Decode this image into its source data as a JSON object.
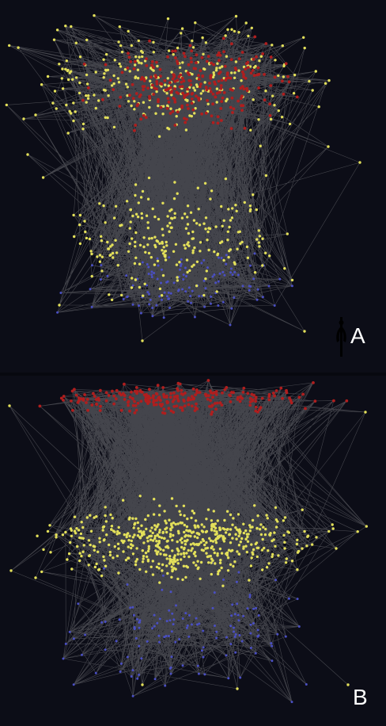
{
  "panels": [
    {
      "label": "A",
      "structure": "hourglass",
      "node_counts": {
        "red": 260,
        "yellow": 520,
        "blue": 120
      },
      "edge_count": 2400
    },
    {
      "label": "B",
      "structure": "funnel",
      "node_counts": {
        "red": 240,
        "yellow": 560,
        "blue": 140
      },
      "edge_count": 2600
    }
  ],
  "colors": {
    "background": "#0c0d17",
    "edge": "#d8d8d8",
    "red_node": "#b01e1e",
    "yellow_node": "#e3e05a",
    "blue_node": "#4a4fc4",
    "label": "#ffffff"
  },
  "legend_icon": "human-figure-icon"
}
